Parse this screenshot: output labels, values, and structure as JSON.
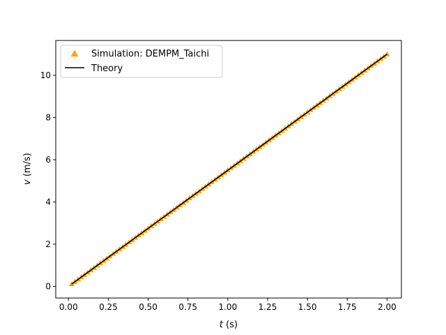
{
  "chart_data": {
    "type": "scatter",
    "title": "",
    "xlabel_var": "t",
    "xlabel_unit": " (s)",
    "ylabel_var": "v",
    "ylabel_unit": " (m/s)",
    "xlim": [
      -0.08,
      2.09
    ],
    "ylim": [
      -0.55,
      11.65
    ],
    "xticks": [
      0.0,
      0.25,
      0.5,
      0.75,
      1.0,
      1.25,
      1.5,
      1.75,
      2.0
    ],
    "xtick_labels": [
      "0.00",
      "0.25",
      "0.50",
      "0.75",
      "1.00",
      "1.25",
      "1.50",
      "1.75",
      "2.00"
    ],
    "yticks": [
      0,
      2,
      4,
      6,
      8,
      10
    ],
    "ytick_labels": [
      "0",
      "2",
      "4",
      "6",
      "8",
      "10"
    ],
    "grid": false,
    "legend_position": "upper left",
    "series": [
      {
        "name": "Simulation: DEMPM_Taichi",
        "kind": "scatter",
        "marker": "triangle-up",
        "color": "#FFA500",
        "x_start": 0.02,
        "x_end": 2.0,
        "x_step": 0.02,
        "y_slope": 5.5,
        "y_intercept": 0.0
      },
      {
        "name": "Theory",
        "kind": "line",
        "color": "#000000",
        "x": [
          0.02,
          2.0
        ],
        "y": [
          0.11,
          11.0
        ]
      }
    ]
  }
}
